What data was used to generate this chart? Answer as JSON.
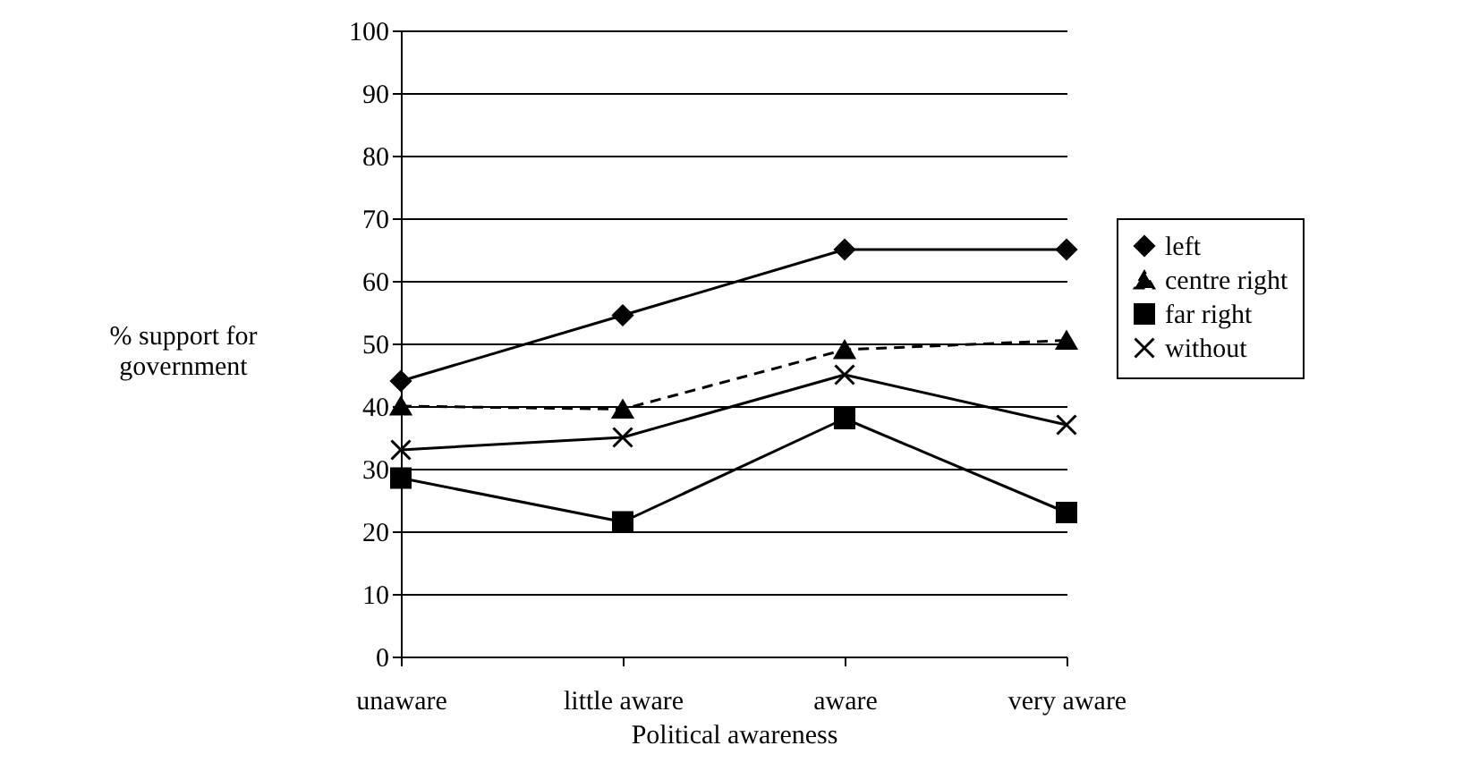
{
  "chart_data": {
    "type": "line",
    "xlabel": "Political awareness",
    "ylabel": "% support for government",
    "categories": [
      "unaware",
      "little aware",
      "aware",
      "very aware"
    ],
    "series": [
      {
        "name": "left",
        "color": "#000000",
        "marker": "diamond",
        "line_style": "solid",
        "values": [
          44,
          54.5,
          65,
          65
        ]
      },
      {
        "name": "centre right",
        "color": "#000000",
        "marker": "triangle",
        "line_style": "dashed",
        "values": [
          40,
          39.5,
          49,
          50.5
        ]
      },
      {
        "name": "far right",
        "color": "#000000",
        "marker": "square",
        "line_style": "solid",
        "values": [
          28.5,
          21.5,
          38,
          23
        ]
      },
      {
        "name": "without",
        "color": "#000000",
        "marker": "cross",
        "line_style": "solid",
        "values": [
          33,
          35,
          45,
          37
        ]
      }
    ],
    "ylim": [
      0,
      100
    ],
    "yticks": [
      0,
      10,
      20,
      30,
      40,
      50,
      60,
      70,
      80,
      90,
      100
    ],
    "grid": "y",
    "legend": "right"
  }
}
